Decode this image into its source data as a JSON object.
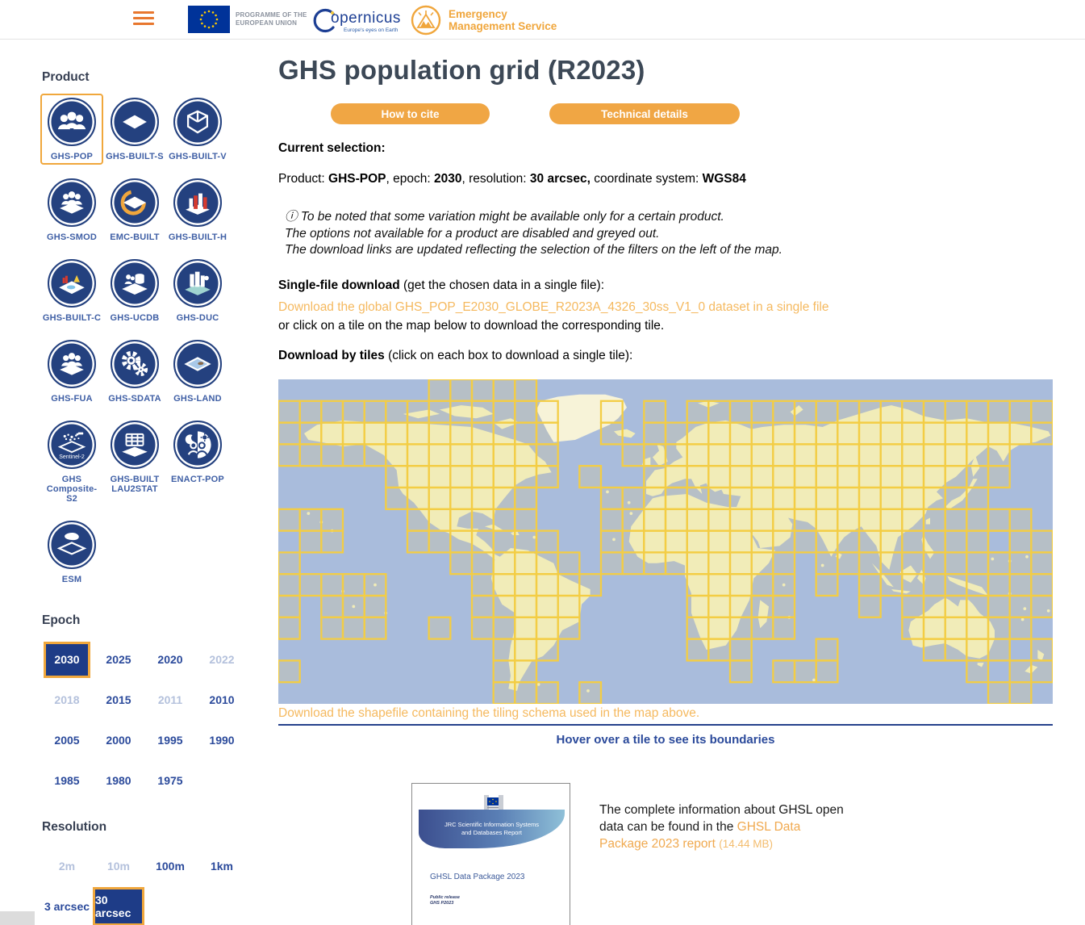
{
  "header": {
    "eu_program_line1": "PROGRAMME OF THE",
    "eu_program_line2": "EUROPEAN UNION",
    "copernicus_name": "opernicus",
    "copernicus_tagline": "Europe's eyes on Earth",
    "ems_line1": "Emergency",
    "ems_line2": "Management Service"
  },
  "sidebar": {
    "product_heading": "Product",
    "products": [
      {
        "label": "GHS-POP",
        "icon": "people",
        "state": "selected"
      },
      {
        "label": "GHS-BUILT-S",
        "icon": "layer",
        "state": "enabled"
      },
      {
        "label": "GHS-BUILT-V",
        "icon": "cube",
        "state": "enabled"
      },
      {
        "label": "GHS-SMOD",
        "icon": "people-layer",
        "state": "enabled"
      },
      {
        "label": "EMC-BUILT",
        "icon": "layer-orange",
        "state": "enabled"
      },
      {
        "label": "GHS-BUILT-H",
        "icon": "buildings",
        "state": "enabled"
      },
      {
        "label": "GHS-BUILT-C",
        "icon": "colored-map",
        "state": "enabled"
      },
      {
        "label": "GHS-UCDB",
        "icon": "db-layer",
        "state": "enabled"
      },
      {
        "label": "GHS-DUC",
        "icon": "city-map",
        "state": "enabled"
      },
      {
        "label": "GHS-FUA",
        "icon": "people-layer",
        "state": "enabled"
      },
      {
        "label": "GHS-SDATA",
        "icon": "gears",
        "state": "enabled"
      },
      {
        "label": "GHS-LAND",
        "icon": "land-map",
        "state": "enabled"
      },
      {
        "label": "GHS\nComposite-S2",
        "icon": "satellite",
        "icon_text": "Sentinel-2",
        "state": "enabled"
      },
      {
        "label": "GHS-BUILT\nLAU2STAT",
        "icon": "table-layer",
        "state": "enabled"
      },
      {
        "label": "ENACT-POP",
        "icon": "day-night",
        "state": "enabled"
      },
      {
        "label": "ESM",
        "icon": "eu-layer",
        "state": "enabled"
      }
    ],
    "epoch_heading": "Epoch",
    "epochs": [
      {
        "label": "2030",
        "state": "selected"
      },
      {
        "label": "2025",
        "state": "enabled"
      },
      {
        "label": "2020",
        "state": "enabled"
      },
      {
        "label": "2022",
        "state": "disabled"
      },
      {
        "label": "2018",
        "state": "disabled"
      },
      {
        "label": "2015",
        "state": "enabled"
      },
      {
        "label": "2011",
        "state": "disabled"
      },
      {
        "label": "2010",
        "state": "enabled"
      },
      {
        "label": "2005",
        "state": "enabled"
      },
      {
        "label": "2000",
        "state": "enabled"
      },
      {
        "label": "1995",
        "state": "enabled"
      },
      {
        "label": "1990",
        "state": "enabled"
      },
      {
        "label": "1985",
        "state": "enabled"
      },
      {
        "label": "1980",
        "state": "enabled"
      },
      {
        "label": "1975",
        "state": "enabled"
      }
    ],
    "resolution_heading": "Resolution",
    "resolutions": [
      {
        "label": "2m",
        "state": "disabled"
      },
      {
        "label": "10m",
        "state": "disabled"
      },
      {
        "label": "100m",
        "state": "enabled"
      },
      {
        "label": "1km",
        "state": "enabled"
      },
      {
        "label": "3 arcsec",
        "state": "enabled"
      },
      {
        "label": "30 arcsec",
        "state": "selected"
      }
    ]
  },
  "main": {
    "title": "GHS population grid (R2023)",
    "cite_button": "How to cite",
    "details_button": "Technical details",
    "current_selection_label": "Current selection:",
    "selection": {
      "l1": "Product: ",
      "v1": "GHS-POP",
      "l2": ", epoch: ",
      "v2": "2030",
      "l3": ", resolution: ",
      "v3": "30 arcsec,",
      "l4": " coordinate system: ",
      "v4": "WGS84"
    },
    "note_icon": "ⓘ",
    "note_lines": [
      "To be noted that some variation might be available only for a certain product.",
      "The options not available for a product are disabled and greyed out.",
      "The download links are updated reflecting the selection of the filters on the left of the map."
    ],
    "single_file_heading": "Single-file download",
    "single_file_suffix": " (get the chosen data in a single file):",
    "single_file_link": "Download the global GHS_POP_E2030_GLOBE_R2023A_4326_30ss_V1_0 dataset in a single file",
    "single_file_after": "or click on a tile on the map below to download the corresponding tile.",
    "tiles_heading": "Download by tiles",
    "tiles_suffix": " (click on each box to download a single tile):",
    "shapefile_link": "Download the shapefile containing the tiling schema used in the map above.",
    "hover_hint": "Hover over a tile to see its boundaries",
    "map": {
      "ocean_color": "#a9bcdc",
      "land_color": "#f1ecb8",
      "land_light_color": "#f7f3d8",
      "tile_border_color": "#f3cd44",
      "tile_fill_color": "rgba(198,195,170,0.45)",
      "cols": 36,
      "rows": 15,
      "grid": [
        "000000011111000000000000000000000000",
        "111111111111100101011111111111111111",
        "111111111111100101111111111111111111",
        "111111111111100011111111111111111100",
        "000001111111101001111111111111111100",
        "000001111111000111111111111111111000",
        "111000111111000111111111111111111110",
        "011000111111100111111111111111111211",
        "100000001111110111111111011111111111",
        "111110000111111000011111010111111111",
        "101110000111110000011111000101111111",
        "101110010111110000011111000001111110",
        "000000000011100000011100010000111121",
        "100000000011000000000101110000001011",
        "000000000011101000000000000000000110"
      ]
    },
    "report": {
      "cover_band": "JRC Scientific Information Systems\nand Databases Report",
      "cover_title": "GHSL Data Package 2023",
      "cover_sub1": "Public release",
      "cover_sub2": "GHS P2023",
      "text_intro": "The complete information about GHSL open data can be found in the ",
      "link_text": "GHSL Data Package 2023 report",
      "size_text": "(14.44 MB)"
    }
  }
}
